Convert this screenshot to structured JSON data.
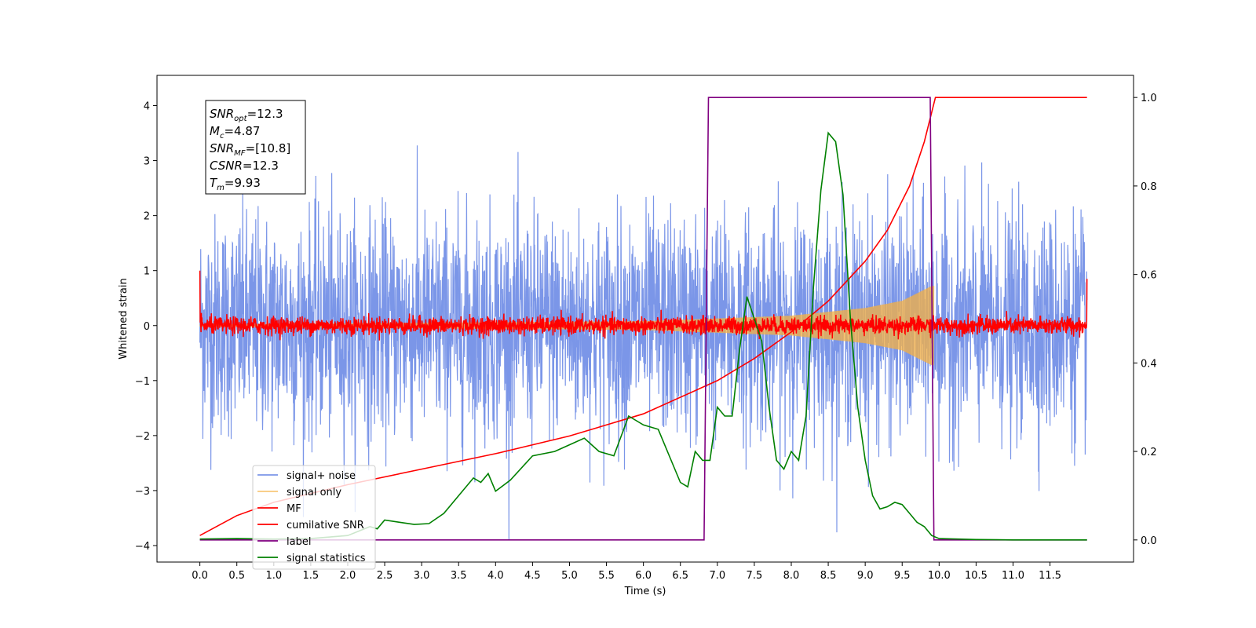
{
  "chart_data": {
    "type": "line",
    "title": "",
    "xlabel": "Time (s)",
    "ylabel_left": "Whitened strain",
    "ylabel_right": "",
    "xlim": [
      -0.58,
      12.63
    ],
    "ylim_left": [
      -4.3,
      4.55
    ],
    "ylim_right": [
      -0.05,
      1.05
    ],
    "x_ticks": [
      0.0,
      0.5,
      1.0,
      1.5,
      2.0,
      2.5,
      3.0,
      3.5,
      4.0,
      4.5,
      5.0,
      5.5,
      6.0,
      6.5,
      7.0,
      7.5,
      8.0,
      8.5,
      9.0,
      9.5,
      10.0,
      10.5,
      11.0,
      11.5
    ],
    "x_tick_labels": [
      "0.0",
      "0.5",
      "1.0",
      "1.5",
      "2.0",
      "2.5",
      "3.0",
      "3.5",
      "4.0",
      "4.5",
      "5.0",
      "5.5",
      "6.0",
      "6.5",
      "7.0",
      "7.5",
      "8.0",
      "8.5",
      "9.0",
      "9.5",
      "10.0",
      "10.5",
      "11.0",
      "11.5"
    ],
    "y_ticks_left": [
      -4,
      -3,
      -2,
      -1,
      0,
      1,
      2,
      3,
      4
    ],
    "y_tick_labels_left": [
      "−4",
      "−3",
      "−2",
      "−1",
      "0",
      "1",
      "2",
      "3",
      "4"
    ],
    "y_ticks_right": [
      0.0,
      0.2,
      0.4,
      0.6,
      0.8,
      1.0
    ],
    "y_tick_labels_right": [
      "0.0",
      "0.2",
      "0.4",
      "0.6",
      "0.8",
      "1.0"
    ],
    "grid": false,
    "legend_placement": "lower-left",
    "annotation": {
      "lines": [
        {
          "base": "SNR",
          "sub": "opt",
          "value": "=12.3"
        },
        {
          "base": "M",
          "sub": "c",
          "value": "=4.87"
        },
        {
          "base": "SNR",
          "sub": "MF",
          "value": "=[10.8]"
        },
        {
          "base": "CSNR",
          "sub": "",
          "value": "=12.3"
        },
        {
          "base": "T",
          "sub": "m",
          "value": "=9.93"
        }
      ]
    },
    "series": [
      {
        "name": "signal+ noise",
        "axis": "left",
        "color": "#7b96e8",
        "kind": "noise",
        "x_range": [
          0.0,
          12.0
        ],
        "approx_sigma": 1.0
      },
      {
        "name": "signal only",
        "axis": "left",
        "color": "#f5b041",
        "kind": "chirp",
        "x_range": [
          0.0,
          9.93
        ],
        "envelope_points": [
          [
            0.0,
            0.02
          ],
          [
            6.0,
            0.08
          ],
          [
            8.0,
            0.18
          ],
          [
            9.0,
            0.32
          ],
          [
            9.5,
            0.45
          ],
          [
            9.9,
            0.72
          ]
        ]
      },
      {
        "name": "MF",
        "axis": "left",
        "color": "#ff0000",
        "kind": "noise",
        "x_range": [
          0.0,
          12.0
        ],
        "approx_sigma": 0.08
      },
      {
        "name": "cumilative SNR",
        "axis": "right",
        "color": "#ff0000",
        "kind": "line",
        "points": [
          [
            0.0,
            0.01
          ],
          [
            0.5,
            0.055
          ],
          [
            1.0,
            0.085
          ],
          [
            1.5,
            0.105
          ],
          [
            2.0,
            0.125
          ],
          [
            3.0,
            0.16
          ],
          [
            4.0,
            0.195
          ],
          [
            5.0,
            0.235
          ],
          [
            6.0,
            0.285
          ],
          [
            7.0,
            0.36
          ],
          [
            7.5,
            0.41
          ],
          [
            8.0,
            0.47
          ],
          [
            8.5,
            0.54
          ],
          [
            9.0,
            0.63
          ],
          [
            9.3,
            0.7
          ],
          [
            9.6,
            0.8
          ],
          [
            9.8,
            0.9
          ],
          [
            9.95,
            1.0
          ],
          [
            12.0,
            1.0
          ]
        ]
      },
      {
        "name": "label",
        "axis": "right",
        "color": "#800080",
        "kind": "step",
        "points": [
          [
            0.0,
            0.0
          ],
          [
            6.82,
            0.0
          ],
          [
            6.88,
            1.0
          ],
          [
            9.88,
            1.0
          ],
          [
            9.93,
            0.0
          ],
          [
            12.0,
            0.0
          ]
        ]
      },
      {
        "name": "signal statistics",
        "axis": "right",
        "color": "#008000",
        "kind": "line",
        "points": [
          [
            0.0,
            0.002
          ],
          [
            0.5,
            0.003
          ],
          [
            1.0,
            0.002
          ],
          [
            1.5,
            0.003
          ],
          [
            2.0,
            0.01
          ],
          [
            2.3,
            0.03
          ],
          [
            2.4,
            0.025
          ],
          [
            2.5,
            0.045
          ],
          [
            2.7,
            0.04
          ],
          [
            2.9,
            0.035
          ],
          [
            3.1,
            0.037
          ],
          [
            3.3,
            0.06
          ],
          [
            3.5,
            0.1
          ],
          [
            3.7,
            0.14
          ],
          [
            3.8,
            0.13
          ],
          [
            3.9,
            0.15
          ],
          [
            4.0,
            0.11
          ],
          [
            4.2,
            0.135
          ],
          [
            4.5,
            0.19
          ],
          [
            4.8,
            0.2
          ],
          [
            5.0,
            0.215
          ],
          [
            5.2,
            0.23
          ],
          [
            5.4,
            0.2
          ],
          [
            5.6,
            0.19
          ],
          [
            5.8,
            0.28
          ],
          [
            6.0,
            0.26
          ],
          [
            6.2,
            0.25
          ],
          [
            6.4,
            0.17
          ],
          [
            6.5,
            0.13
          ],
          [
            6.6,
            0.12
          ],
          [
            6.7,
            0.2
          ],
          [
            6.8,
            0.18
          ],
          [
            6.9,
            0.18
          ],
          [
            7.0,
            0.3
          ],
          [
            7.1,
            0.28
          ],
          [
            7.2,
            0.28
          ],
          [
            7.3,
            0.43
          ],
          [
            7.4,
            0.55
          ],
          [
            7.5,
            0.5
          ],
          [
            7.6,
            0.45
          ],
          [
            7.7,
            0.3
          ],
          [
            7.8,
            0.18
          ],
          [
            7.9,
            0.16
          ],
          [
            8.0,
            0.2
          ],
          [
            8.1,
            0.18
          ],
          [
            8.2,
            0.28
          ],
          [
            8.3,
            0.57
          ],
          [
            8.4,
            0.79
          ],
          [
            8.5,
            0.92
          ],
          [
            8.6,
            0.9
          ],
          [
            8.7,
            0.78
          ],
          [
            8.8,
            0.5
          ],
          [
            8.9,
            0.3
          ],
          [
            9.0,
            0.18
          ],
          [
            9.1,
            0.1
          ],
          [
            9.2,
            0.07
          ],
          [
            9.3,
            0.075
          ],
          [
            9.4,
            0.085
          ],
          [
            9.5,
            0.08
          ],
          [
            9.6,
            0.06
          ],
          [
            9.7,
            0.04
          ],
          [
            9.8,
            0.03
          ],
          [
            9.9,
            0.01
          ],
          [
            10.0,
            0.003
          ],
          [
            10.5,
            0.001
          ],
          [
            11.0,
            0.0
          ],
          [
            12.0,
            0.0
          ]
        ]
      }
    ]
  }
}
